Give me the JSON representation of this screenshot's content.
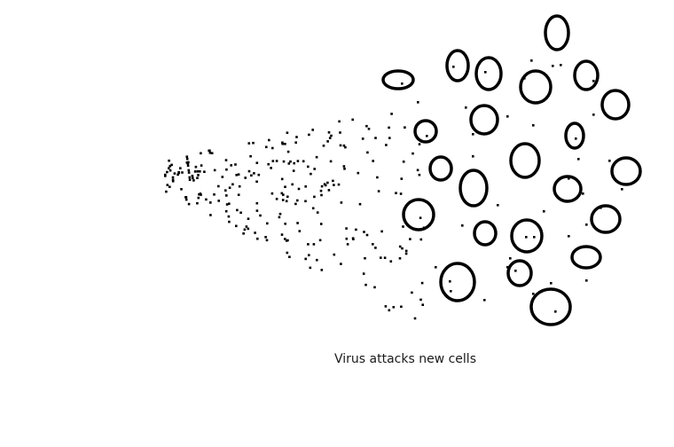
{
  "caption": "Virus attacks new cells",
  "colors": {
    "ink": "#000000",
    "background": "#ffffff"
  }
}
